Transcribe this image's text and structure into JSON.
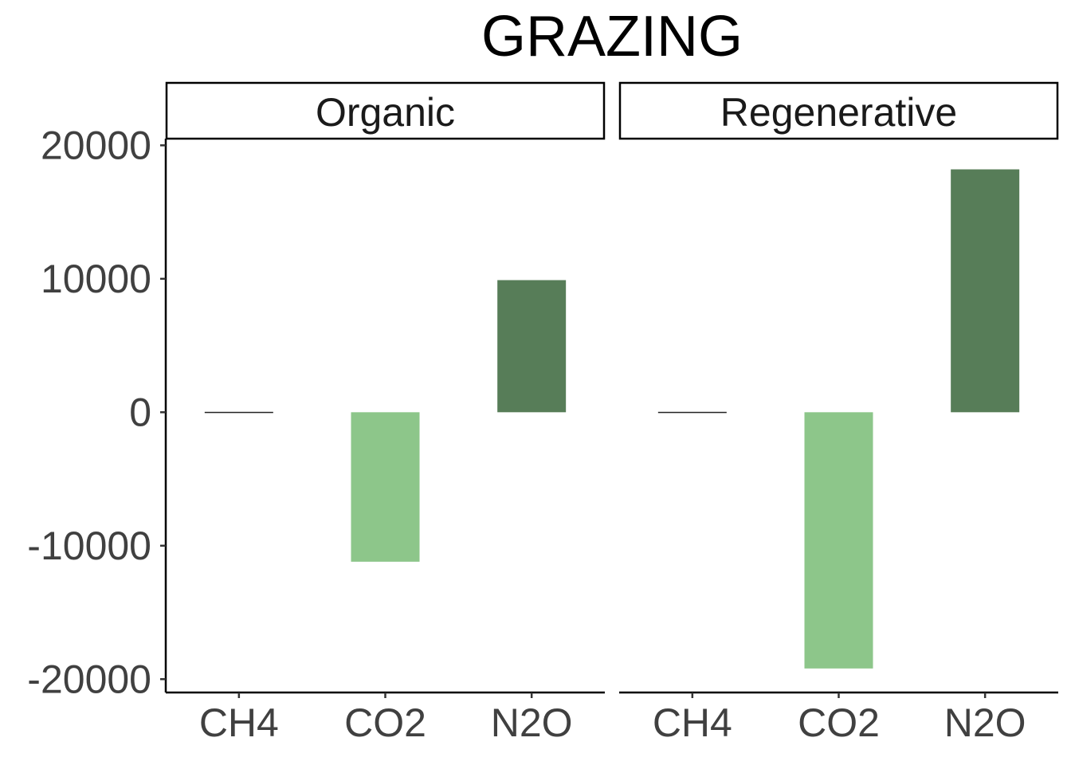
{
  "chart_data": {
    "type": "bar",
    "title": "GRAZING",
    "xlabel": "",
    "ylabel": "",
    "ylim": [
      -21000,
      20500
    ],
    "yticks": [
      20000,
      10000,
      0,
      -10000,
      -20000
    ],
    "ytick_labels": [
      "20000",
      "10000",
      "0",
      "-10000",
      "-20000"
    ],
    "grid": false,
    "legend": "none",
    "categories": [
      "CH4",
      "CO2",
      "N2O"
    ],
    "colors": {
      "CH4": "#222222",
      "CO2": "#8dc68a",
      "N2O": "#577d58"
    },
    "panels": [
      {
        "name": "Organic",
        "values": [
          30,
          -11200,
          9900
        ]
      },
      {
        "name": "Regenerative",
        "values": [
          30,
          -19200,
          18200
        ]
      }
    ]
  }
}
